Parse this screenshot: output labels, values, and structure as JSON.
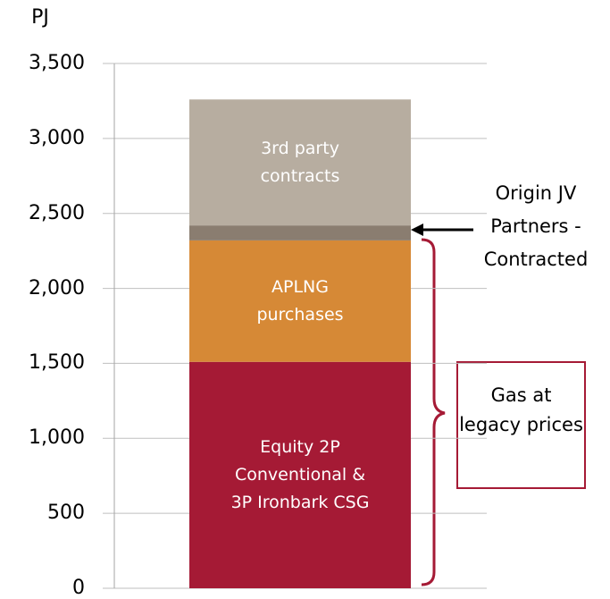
{
  "chart_data": {
    "type": "stacked-bar",
    "y_label": "PJ",
    "ylim": [
      0,
      3500
    ],
    "yticks": [
      0,
      {
        "value": 500,
        "label": "500"
      },
      {
        "value": 1000,
        "label": "1,000"
      },
      {
        "value": 1500,
        "label": "1,500"
      },
      {
        "value": 2000,
        "label": "2,000"
      },
      {
        "value": 2500,
        "label": "2,500"
      },
      {
        "value": 3000,
        "label": "3,000"
      },
      {
        "value": 3500,
        "label": "3,500"
      }
    ],
    "grid": true,
    "series": [
      {
        "name": "Equity 2P Conventional & 3P Ironbark CSG",
        "color": "#a51a35",
        "values": [
          1510
        ]
      },
      {
        "name": "APLNG purchases",
        "color": "#d68936",
        "values": [
          810
        ]
      },
      {
        "name": "",
        "color": "#8a7d70",
        "values": [
          100
        ]
      },
      {
        "name": "3rd party contracts",
        "color": "#b7ada0",
        "values": [
          840
        ]
      }
    ],
    "annotations": [
      "Origin JV Partners - Contracted",
      "Gas at legacy prices"
    ]
  }
}
